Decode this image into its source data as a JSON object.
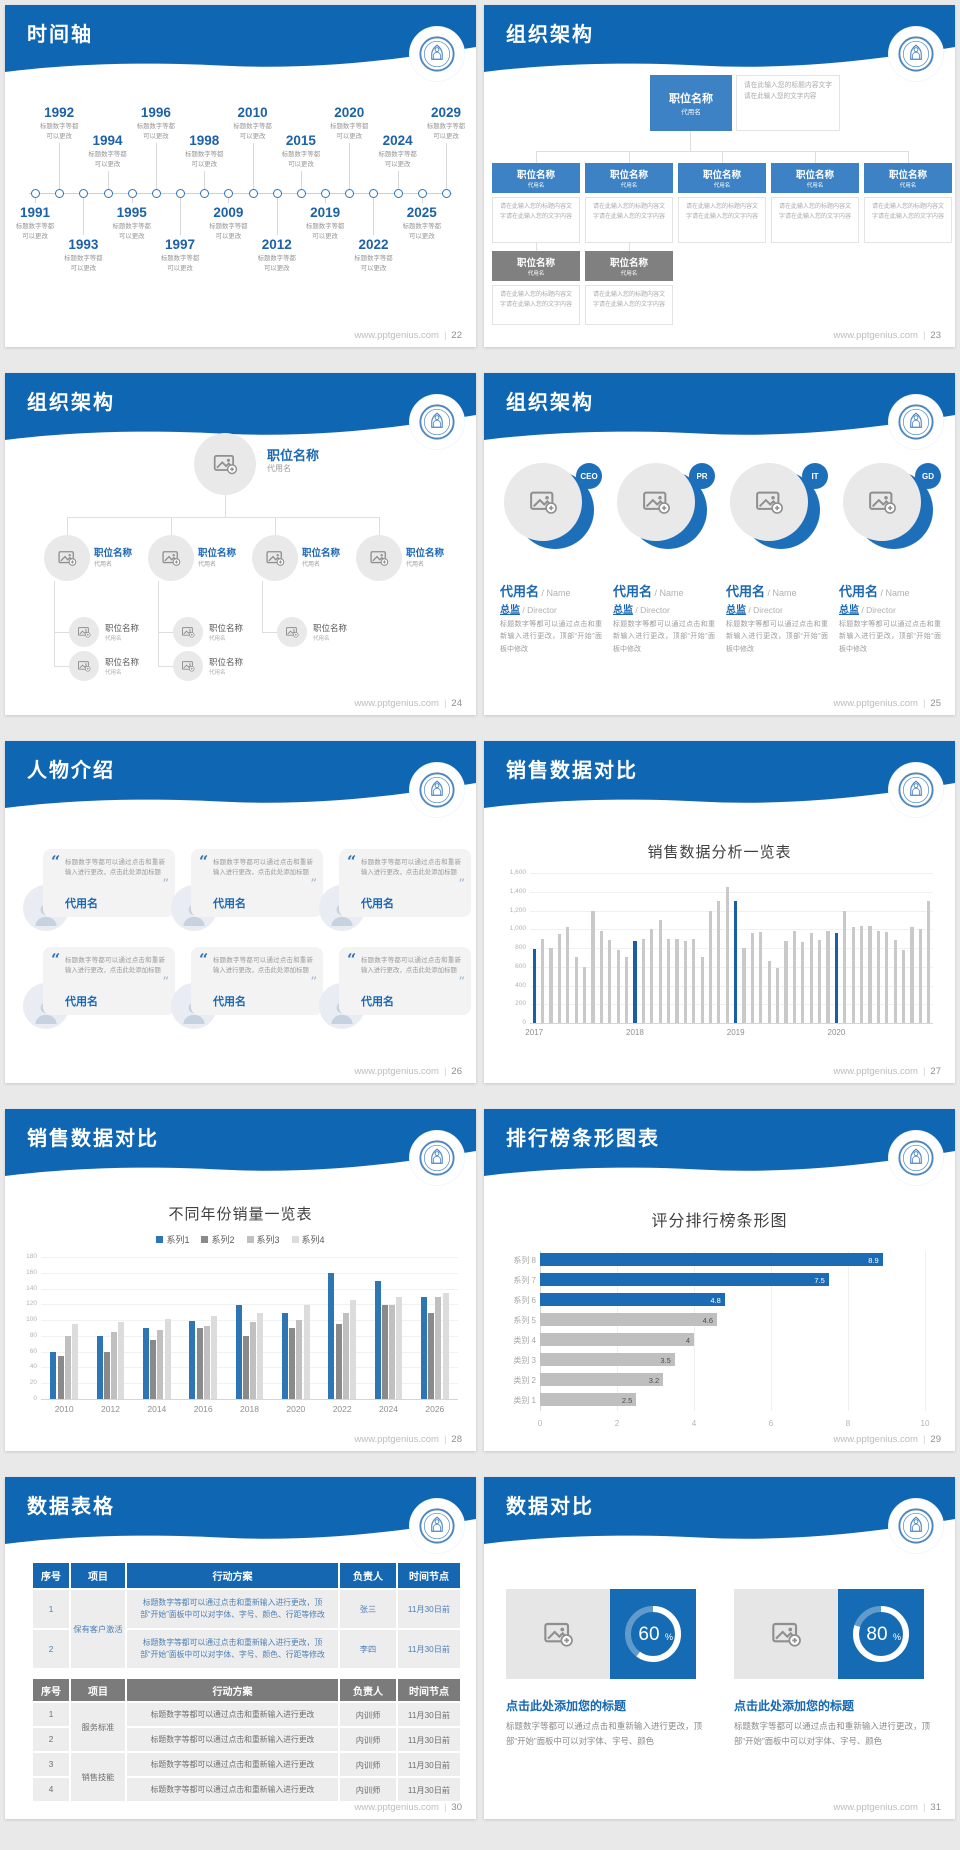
{
  "site": {
    "url": "www.pptgenius.com",
    "sep": "|"
  },
  "colors": {
    "header_blue": "#0f66b2",
    "accent_blue": "#1d68b3",
    "org_box_blue": "#3c82c4",
    "org_box_gray": "#808080",
    "bar_gray": "#c9c9c9",
    "bar_blue": "#1b5ea6",
    "donut_blue": "#166cb4"
  },
  "slides": {
    "timeline": {
      "title": "时间轴",
      "page": "22",
      "caption_line1": "标题数字等都",
      "caption_line2": "可以更改",
      "years": [
        {
          "year": "1991",
          "side": "bottom",
          "tier": 1
        },
        {
          "year": "1992",
          "side": "top",
          "tier": 1
        },
        {
          "year": "1993",
          "side": "bottom",
          "tier": 2
        },
        {
          "year": "1994",
          "side": "top",
          "tier": 2
        },
        {
          "year": "1995",
          "side": "bottom",
          "tier": 1
        },
        {
          "year": "1996",
          "side": "top",
          "tier": 1
        },
        {
          "year": "1997",
          "side": "bottom",
          "tier": 2
        },
        {
          "year": "1998",
          "side": "top",
          "tier": 2
        },
        {
          "year": "2009",
          "side": "bottom",
          "tier": 1
        },
        {
          "year": "2010",
          "side": "top",
          "tier": 1
        },
        {
          "year": "2012",
          "side": "bottom",
          "tier": 2
        },
        {
          "year": "2015",
          "side": "top",
          "tier": 2
        },
        {
          "year": "2019",
          "side": "bottom",
          "tier": 1
        },
        {
          "year": "2020",
          "side": "top",
          "tier": 1
        },
        {
          "year": "2022",
          "side": "bottom",
          "tier": 2
        },
        {
          "year": "2024",
          "side": "top",
          "tier": 2
        },
        {
          "year": "2025",
          "side": "bottom",
          "tier": 1
        },
        {
          "year": "2029",
          "side": "top",
          "tier": 1
        }
      ]
    },
    "org1": {
      "title": "组织架构",
      "page": "23",
      "box_title": "职位名称",
      "box_subtitle": "代用名",
      "root_note": "请在此输入您的标题内容文字请在此输入您的文字内容",
      "child_note": "请在此输入您的标题内容文字请在此输入您的文字内容",
      "blue_children": 5,
      "gray_children": 2
    },
    "org2": {
      "title": "组织架构",
      "page": "24",
      "position": "职位名称",
      "alias": "代用名",
      "children": 4,
      "sub_counts": [
        2,
        2,
        1,
        0
      ]
    },
    "org3": {
      "title": "组织架构",
      "page": "25",
      "badges": [
        "CEO",
        "PR",
        "IT",
        "GD"
      ],
      "name": "代用名",
      "name_en": "Name",
      "role": "总监",
      "role_en": "Director",
      "note": "标题数字等都可以通过点击和重新输入进行更改，顶部“开始”面板中修改"
    },
    "people": {
      "title": "人物介绍",
      "page": "26",
      "cards": 6,
      "quote": "标题数字等都可以通过点击和重新输入进行更改，点击此处添加标题",
      "name": "代用名"
    },
    "sales1": {
      "title": "销售数据对比",
      "page": "27"
    },
    "sales2": {
      "title": "销售数据对比",
      "page": "28"
    },
    "ranking": {
      "title": "排行榜条形图表",
      "page": "29"
    },
    "tables": {
      "title": "数据表格",
      "page": "30",
      "headers": [
        "序号",
        "项目",
        "行动方案",
        "负责人",
        "时间节点"
      ],
      "table1": {
        "groups": [
          {
            "project": "保有客户激活",
            "rows": [
              {
                "no": "1",
                "plan": "标题数字等都可以通过点击和重新输入进行更改，顶部“开始”面板中可以对字体、字号、颜色、行距等修改",
                "owner": "张三",
                "time": "11月30日前"
              },
              {
                "no": "2",
                "plan": "标题数字等都可以通过点击和重新输入进行更改，顶部“开始”面板中可以对字体、字号、颜色、行距等修改",
                "owner": "李四",
                "time": "11月30日前"
              }
            ]
          }
        ]
      },
      "table2": {
        "groups": [
          {
            "project": "服务标准",
            "rows": [
              {
                "no": "1",
                "plan": "标题数字等都可以通过点击和重新输入进行更改",
                "owner": "内训师",
                "time": "11月30日前"
              },
              {
                "no": "2",
                "plan": "标题数字等都可以通过点击和重新输入进行更改",
                "owner": "内训师",
                "time": "11月30日前"
              }
            ]
          },
          {
            "project": "销售技能",
            "rows": [
              {
                "no": "3",
                "plan": "标题数字等都可以通过点击和重新输入进行更改",
                "owner": "内训师",
                "time": "11月30日前"
              },
              {
                "no": "4",
                "plan": "标题数字等都可以通过点击和重新输入进行更改",
                "owner": "内训师",
                "time": "11月30日前"
              }
            ]
          }
        ]
      }
    },
    "compare": {
      "title": "数据对比",
      "page": "31",
      "items": [
        {
          "percent": 60,
          "title": "点击此处添加您的标题",
          "body": "标题数字等都可以通过点击和重新输入进行更改，顶部“开始”面板中可以对字体、字号、颜色"
        },
        {
          "percent": 80,
          "title": "点击此处添加您的标题",
          "body": "标题数字等都可以通过点击和重新输入进行更改，顶部“开始”面板中可以对字体、字号、颜色"
        }
      ]
    }
  },
  "chart_data": [
    {
      "type": "bar",
      "title": "销售数据分析一览表",
      "xlabel": "",
      "ylabel": "",
      "ylim": [
        0,
        1600
      ],
      "ystep": 200,
      "grid": true,
      "values": [
        790,
        900,
        800,
        950,
        1020,
        700,
        600,
        1200,
        980,
        890,
        780,
        700,
        880,
        900,
        1000,
        1100,
        900,
        900,
        880,
        900,
        700,
        1200,
        1300,
        1450,
        1300,
        800,
        960,
        970,
        660,
        590,
        870,
        980,
        860,
        960,
        890,
        980,
        960,
        1200,
        1020,
        1030,
        1030,
        980,
        970,
        890,
        780,
        1020,
        1000,
        1300
      ],
      "highlight_indices": [
        0,
        12,
        24,
        36
      ],
      "ticks": [
        {
          "index": 0,
          "label": "2017"
        },
        {
          "index": 12,
          "label": "2018"
        },
        {
          "index": 24,
          "label": "2019"
        },
        {
          "index": 36,
          "label": "2020"
        }
      ]
    },
    {
      "type": "bar",
      "title": "不同年份销量一览表",
      "categories": [
        "2010",
        "2012",
        "2014",
        "2016",
        "2018",
        "2020",
        "2022",
        "2024",
        "2026"
      ],
      "series": [
        {
          "name": "系列1",
          "color": "#2e75b6",
          "values": [
            60,
            80,
            90,
            99,
            119,
            109,
            160,
            150,
            129
          ]
        },
        {
          "name": "系列2",
          "color": "#8a8a8a",
          "values": [
            55,
            60,
            75,
            90,
            80,
            90,
            95,
            119,
            109
          ]
        },
        {
          "name": "系列3",
          "color": "#c0c0c0",
          "values": [
            80,
            85,
            88,
            92,
            98,
            100,
            109,
            119,
            129
          ]
        },
        {
          "name": "系列4",
          "color": "#dcdcdc",
          "values": [
            95,
            98,
            101,
            105,
            109,
            119,
            125,
            129,
            134
          ]
        }
      ],
      "ylim": [
        0,
        180
      ],
      "ystep": 20,
      "legend_position": "top",
      "grid": true
    },
    {
      "type": "bar",
      "title": "评分排行榜条形图",
      "orientation": "horizontal",
      "categories": [
        "系列 8",
        "系列 7",
        "系列 6",
        "系列 5",
        "类别 4",
        "类别 3",
        "类别 2",
        "类别 1"
      ],
      "values": [
        8.9,
        7.5,
        4.8,
        4.6,
        4,
        3.5,
        3.2,
        2.5
      ],
      "value_labels": [
        "8.9",
        "7.5",
        "4.8",
        "4.6",
        "4",
        "3.5",
        "3.2",
        "2.5"
      ],
      "highlight_count": 3,
      "xlim": [
        0,
        10
      ],
      "xstep": 2,
      "grid": true
    }
  ]
}
